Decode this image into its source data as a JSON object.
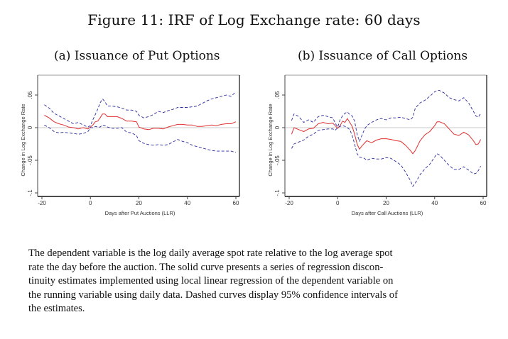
{
  "figure": {
    "title": "Figure 11: IRF of Log Exchange rate: 60 days",
    "caption_lines": [
      "The dependent variable is the log daily average spot rate relative to the log average spot",
      "rate the day before the auction.  The solid curve presents a series of regression discon-",
      "tinuity estimates implemented using local linear regression of the dependent variable on",
      "the running variable using daily data. Dashed curves display 95% confidence intervals of",
      "the estimates."
    ]
  },
  "colors": {
    "estimate": "#e03030",
    "ci": "#2a2aa0",
    "zero_line": "#c8c8c8",
    "axis": "#222222"
  },
  "chart_data": [
    {
      "type": "line",
      "title": "(a) Issuance of Put Options",
      "xlabel": "Days after Put Auctions (LLR)",
      "ylabel": "Change in Log Exchange Rate",
      "xlim": [
        -20,
        60
      ],
      "ylim": [
        -0.1,
        0.07
      ],
      "xticks": [
        -20,
        0,
        20,
        40,
        60
      ],
      "xtick_labels": [
        "-20",
        "0",
        "20",
        "40",
        "60"
      ],
      "yticks": [
        -0.1,
        -0.05,
        0,
        0.05
      ],
      "ytick_labels": [
        "-.1",
        "-.05",
        "0",
        ".05"
      ],
      "grid": false,
      "reference_line": 0,
      "x": [
        -19,
        -17,
        -15,
        -13,
        -11,
        -9,
        -7,
        -5,
        -3,
        -1,
        0,
        1,
        2,
        3,
        4,
        5,
        6,
        7,
        9,
        11,
        13,
        15,
        17,
        19,
        20,
        22,
        24,
        26,
        28,
        30,
        32,
        34,
        36,
        38,
        40,
        42,
        44,
        46,
        48,
        50,
        52,
        54,
        56,
        58,
        60
      ],
      "series": [
        {
          "name": "estimate",
          "style": "solid",
          "values": [
            0.019,
            0.015,
            0.009,
            0.006,
            0.004,
            0.001,
            0.0,
            -0.002,
            0.0,
            -0.002,
            0.001,
            0.004,
            0.009,
            0.01,
            0.015,
            0.021,
            0.021,
            0.017,
            0.017,
            0.017,
            0.014,
            0.01,
            0.01,
            0.009,
            0.001,
            -0.002,
            -0.003,
            -0.001,
            -0.001,
            -0.002,
            0.001,
            0.003,
            0.005,
            0.005,
            0.004,
            0.004,
            0.002,
            0.002,
            0.003,
            0.004,
            0.003,
            0.005,
            0.006,
            0.006,
            0.009
          ]
        },
        {
          "name": "upper 95% CI",
          "style": "dashed",
          "values": [
            0.035,
            0.03,
            0.022,
            0.018,
            0.014,
            0.01,
            0.006,
            0.008,
            0.004,
            0.001,
            0.003,
            0.012,
            0.02,
            0.028,
            0.038,
            0.044,
            0.04,
            0.033,
            0.033,
            0.032,
            0.03,
            0.027,
            0.027,
            0.025,
            0.019,
            0.015,
            0.017,
            0.02,
            0.025,
            0.023,
            0.026,
            0.028,
            0.031,
            0.031,
            0.031,
            0.032,
            0.033,
            0.037,
            0.041,
            0.044,
            0.046,
            0.048,
            0.05,
            0.048,
            0.055
          ]
        },
        {
          "name": "lower 95% CI",
          "style": "dashed",
          "values": [
            0.004,
            0.0,
            -0.006,
            -0.008,
            -0.007,
            -0.008,
            -0.009,
            -0.01,
            -0.009,
            -0.006,
            0.0,
            0.0,
            0.002,
            0.001,
            0.001,
            0.004,
            0.003,
            0.001,
            -0.001,
            -0.001,
            0.0,
            -0.007,
            -0.008,
            -0.012,
            -0.02,
            -0.024,
            -0.026,
            -0.027,
            -0.026,
            -0.027,
            -0.026,
            -0.022,
            -0.018,
            -0.021,
            -0.023,
            -0.027,
            -0.029,
            -0.031,
            -0.033,
            -0.035,
            -0.036,
            -0.036,
            -0.036,
            -0.036,
            -0.038
          ]
        }
      ]
    },
    {
      "type": "line",
      "title": "(b) Issuance of Call Options",
      "xlabel": "Days after Call Auctions (LLR)",
      "ylabel": "Change in Log Exchange Rate",
      "xlim": [
        -20,
        60
      ],
      "ylim": [
        -0.1,
        0.07
      ],
      "xticks": [
        -20,
        0,
        20,
        40,
        60
      ],
      "xtick_labels": [
        "-20",
        "0",
        "20",
        "40",
        "60"
      ],
      "yticks": [
        -0.1,
        -0.05,
        0,
        0.05
      ],
      "ytick_labels": [
        "-.1",
        "-.05",
        "0",
        ".05"
      ],
      "grid": false,
      "reference_line": 0,
      "x": [
        -19,
        -18,
        -16,
        -14,
        -12,
        -10,
        -8,
        -6,
        -4,
        -2,
        -1,
        0,
        1,
        2,
        3,
        4,
        5,
        6,
        7,
        8,
        9,
        10,
        11,
        12,
        14,
        16,
        18,
        20,
        22,
        24,
        26,
        28,
        30,
        31,
        32,
        34,
        36,
        38,
        40,
        41,
        42,
        44,
        46,
        48,
        50,
        52,
        54,
        56,
        57,
        58,
        59
      ],
      "series": [
        {
          "name": "estimate",
          "style": "solid",
          "values": [
            -0.01,
            0.0,
            -0.003,
            -0.006,
            -0.002,
            -0.001,
            0.006,
            0.008,
            0.006,
            0.007,
            0.003,
            -0.001,
            0.003,
            0.01,
            0.008,
            0.014,
            0.008,
            0.002,
            -0.01,
            -0.025,
            -0.033,
            -0.028,
            -0.024,
            -0.02,
            -0.023,
            -0.019,
            -0.017,
            -0.017,
            -0.018,
            -0.02,
            -0.021,
            -0.027,
            -0.035,
            -0.04,
            -0.035,
            -0.02,
            -0.011,
            -0.006,
            0.003,
            0.009,
            0.009,
            0.006,
            -0.002,
            -0.01,
            -0.012,
            -0.007,
            -0.011,
            -0.02,
            -0.026,
            -0.025,
            -0.018
          ]
        },
        {
          "name": "upper 95% CI",
          "style": "dashed",
          "values": [
            0.011,
            0.021,
            0.017,
            0.008,
            0.012,
            0.008,
            0.017,
            0.019,
            0.017,
            0.015,
            0.007,
            0.001,
            0.012,
            0.018,
            0.022,
            0.024,
            0.02,
            0.018,
            0.01,
            -0.01,
            -0.021,
            -0.012,
            -0.003,
            0.003,
            0.008,
            0.012,
            0.014,
            0.012,
            0.015,
            0.015,
            0.016,
            0.014,
            0.012,
            0.016,
            0.03,
            0.038,
            0.042,
            0.048,
            0.055,
            0.057,
            0.057,
            0.053,
            0.046,
            0.043,
            0.041,
            0.046,
            0.038,
            0.025,
            0.018,
            0.016,
            0.022
          ]
        },
        {
          "name": "lower 95% CI",
          "style": "dashed",
          "values": [
            -0.032,
            -0.025,
            -0.022,
            -0.019,
            -0.013,
            -0.01,
            -0.004,
            -0.003,
            -0.002,
            -0.002,
            -0.004,
            0.0,
            0.002,
            0.003,
            0.002,
            0.0,
            -0.003,
            -0.012,
            -0.025,
            -0.04,
            -0.045,
            -0.046,
            -0.047,
            -0.05,
            -0.047,
            -0.048,
            -0.048,
            -0.046,
            -0.047,
            -0.052,
            -0.057,
            -0.068,
            -0.081,
            -0.09,
            -0.085,
            -0.072,
            -0.063,
            -0.056,
            -0.045,
            -0.04,
            -0.042,
            -0.05,
            -0.058,
            -0.064,
            -0.064,
            -0.06,
            -0.065,
            -0.071,
            -0.07,
            -0.066,
            -0.059
          ]
        }
      ]
    }
  ]
}
